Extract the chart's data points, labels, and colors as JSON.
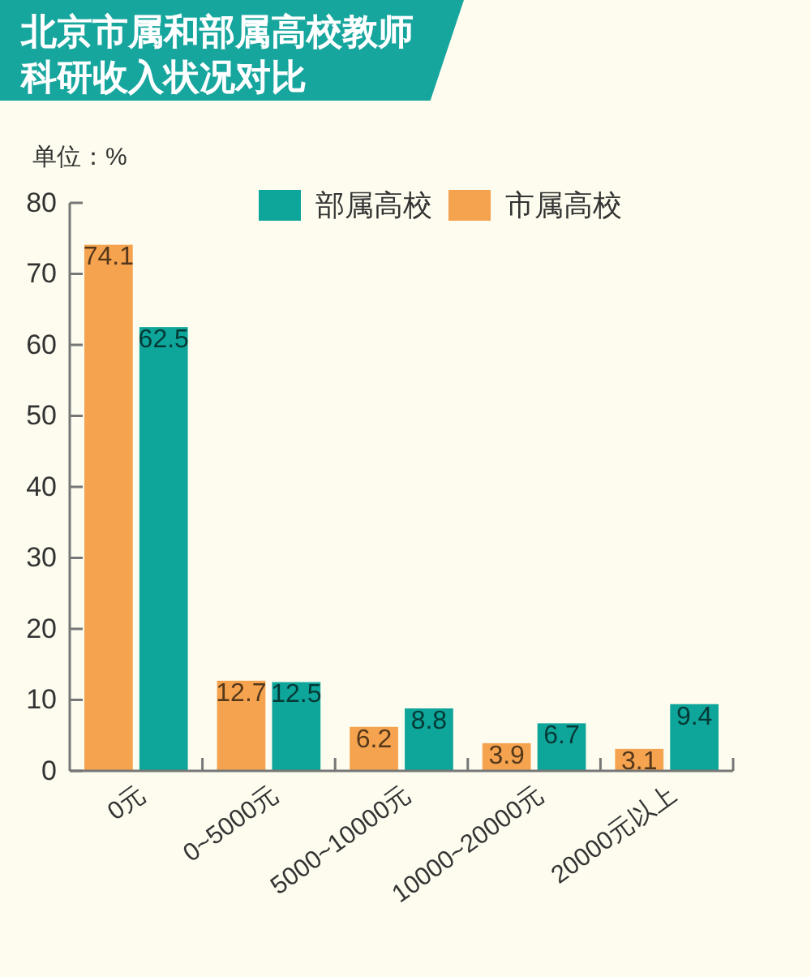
{
  "chart_data": {
    "type": "bar",
    "title": "北京市属和部属高校教师科研收入状况对比",
    "ylabel": "单位：%",
    "categories": [
      "0元",
      "0~5000元",
      "5000~10000元",
      "10000~20000元",
      "20000元以上"
    ],
    "series": [
      {
        "name": "市属高校",
        "color": "#f5a34f",
        "values": [
          74.1,
          12.7,
          6.2,
          3.9,
          3.1
        ]
      },
      {
        "name": "部属高校",
        "color": "#0ea59b",
        "values": [
          62.5,
          12.5,
          8.8,
          6.7,
          9.4
        ]
      }
    ],
    "ylim": [
      0,
      80
    ],
    "yticks": [
      0,
      10,
      20,
      30,
      40,
      50,
      60,
      70,
      80
    ],
    "data_labels": true,
    "legend": "top"
  }
}
